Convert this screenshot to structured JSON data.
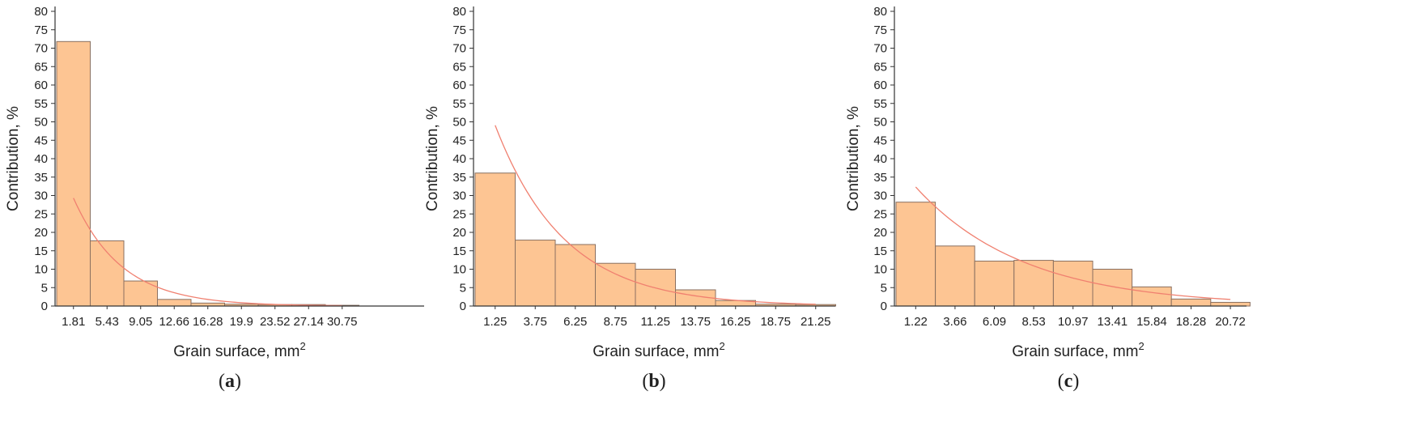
{
  "colors": {
    "bar_fill": "#fdc593",
    "bar_stroke": "#8a7060",
    "fit_line": "#f08070",
    "axis": "#333333"
  },
  "chart_data": [
    {
      "type": "bar",
      "panel_label": "a",
      "xlabel": "Grain surface, mm",
      "xlabel_sup": "2",
      "ylabel": "Contribution, %",
      "ylim": [
        0,
        80
      ],
      "yticks": [
        "0",
        "5",
        "10",
        "15",
        "20",
        "25",
        "30",
        "35",
        "40",
        "45",
        "50",
        "55",
        "60",
        "65",
        "70",
        "75",
        "80"
      ],
      "categories": [
        "1.81",
        "5.43",
        "9.05",
        "12.66",
        "16.28",
        "19.9",
        "23.52",
        "27.14",
        "30.75"
      ],
      "values": [
        71.8,
        17.7,
        6.8,
        1.8,
        0.8,
        0.5,
        0.4,
        0.4,
        0.2
      ],
      "fit_line": true,
      "extra_empty_slots": 2
    },
    {
      "type": "bar",
      "panel_label": "b",
      "xlabel": "Grain surface, mm",
      "xlabel_sup": "2",
      "ylabel": "Contribution, %",
      "ylim": [
        0,
        80
      ],
      "yticks": [
        "0",
        "5",
        "10",
        "15",
        "20",
        "25",
        "30",
        "35",
        "40",
        "45",
        "50",
        "55",
        "60",
        "65",
        "70",
        "75",
        "80"
      ],
      "categories": [
        "1.25",
        "3.75",
        "6.25",
        "8.75",
        "11.25",
        "13.75",
        "16.25",
        "18.75",
        "21.25"
      ],
      "values": [
        36.1,
        17.9,
        16.7,
        11.6,
        10.0,
        4.4,
        1.5,
        0.5,
        0.4
      ],
      "fit_line": true,
      "extra_empty_slots": 0
    },
    {
      "type": "bar",
      "panel_label": "c",
      "xlabel": "Grain surface, mm",
      "xlabel_sup": "2",
      "ylabel": "Contribution, %",
      "ylim": [
        0,
        80
      ],
      "yticks": [
        "0",
        "5",
        "10",
        "15",
        "20",
        "25",
        "30",
        "35",
        "40",
        "45",
        "50",
        "55",
        "60",
        "65",
        "70",
        "75",
        "80"
      ],
      "categories": [
        "1.22",
        "3.66",
        "6.09",
        "8.53",
        "10.97",
        "13.41",
        "15.84",
        "18.28",
        "20.72"
      ],
      "values": [
        28.2,
        16.3,
        12.2,
        12.4,
        12.2,
        10.0,
        5.2,
        1.9,
        1.0
      ],
      "fit_line": true,
      "extra_empty_slots": 0
    }
  ]
}
